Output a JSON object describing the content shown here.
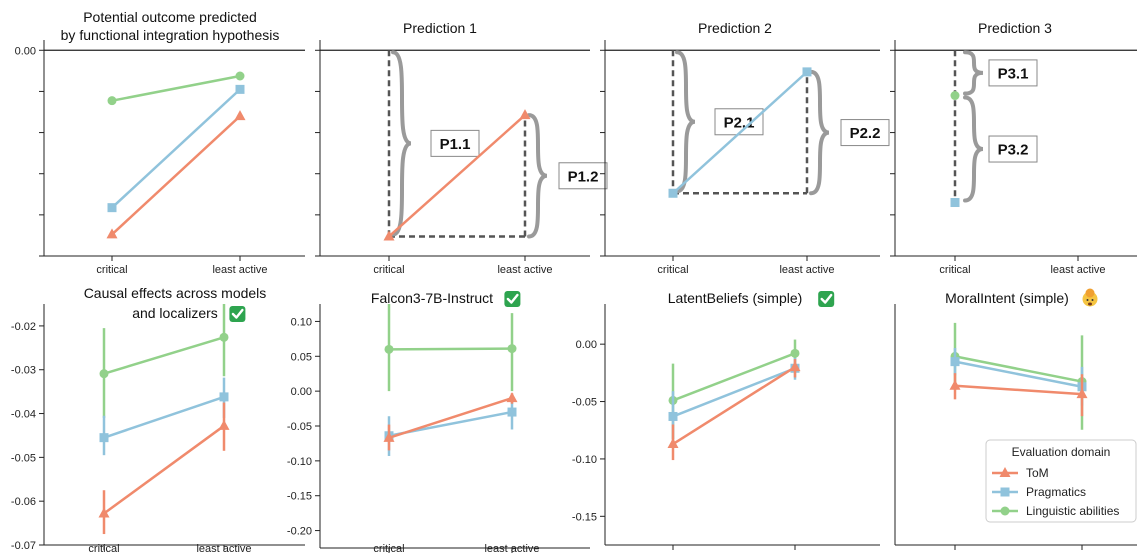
{
  "colors": {
    "tom": "#f08a6c",
    "pragmatics": "#90c3dc",
    "linguistic": "#92d18a",
    "axis": "#222222",
    "brace": "#9a9a9a",
    "dashed": "#555555",
    "emoji_check": "#2ea44f"
  },
  "legend": {
    "title": "Evaluation domain",
    "entries": [
      {
        "key": "tom",
        "label": "ToM",
        "marker": "triangle"
      },
      {
        "key": "pragmatics",
        "label": "Pragmatics",
        "marker": "square"
      },
      {
        "key": "linguistic",
        "label": "Linguistic abilities",
        "marker": "circle"
      }
    ]
  },
  "chart_data": [
    {
      "type": "line",
      "title": "Potential outcome predicted\nby functional integration hypothesis",
      "categories": [
        "critical",
        "least active"
      ],
      "ylim": [
        -0.2,
        0.01
      ],
      "yticks": [
        0,
        -0.04,
        -0.08,
        -0.12,
        -0.16,
        -0.2
      ],
      "ytick_labels": [
        "0.00",
        "",
        "",
        "",
        "",
        ""
      ],
      "hline": 0,
      "series": [
        {
          "key": "tom",
          "values": [
            -0.179,
            -0.064
          ]
        },
        {
          "key": "pragmatics",
          "values": [
            -0.153,
            -0.038
          ]
        },
        {
          "key": "linguistic",
          "values": [
            -0.049,
            -0.025
          ]
        }
      ]
    },
    {
      "type": "line",
      "title": "Prediction 1",
      "categories": [
        "critical",
        "least active"
      ],
      "ylim": [
        -0.2,
        0.01
      ],
      "yticks": [
        0,
        -0.04,
        -0.08,
        -0.12,
        -0.16,
        -0.2
      ],
      "ytick_labels": [
        "",
        "",
        "",
        "",
        "",
        ""
      ],
      "hline": 0,
      "series": [
        {
          "key": "tom",
          "values": [
            -0.181,
            -0.063
          ]
        }
      ],
      "annotations": [
        {
          "label": "P1.1",
          "kind": "dashed-vertical",
          "cat": 0,
          "from": 0,
          "to": -0.181
        },
        {
          "label": "P1.2",
          "kind": "dashed-corner",
          "from": -0.181,
          "to": -0.063
        }
      ]
    },
    {
      "type": "line",
      "title": "Prediction 2",
      "categories": [
        "critical",
        "least active"
      ],
      "ylim": [
        -0.2,
        0.01
      ],
      "yticks": [
        0,
        -0.04,
        -0.08,
        -0.12,
        -0.16,
        -0.2
      ],
      "ytick_labels": [
        "",
        "",
        "",
        "",
        "",
        ""
      ],
      "hline": 0,
      "series": [
        {
          "key": "pragmatics",
          "values": [
            -0.139,
            -0.021
          ]
        }
      ],
      "annotations": [
        {
          "label": "P2.1",
          "kind": "dashed-vertical",
          "cat": 0,
          "from": 0,
          "to": -0.139
        },
        {
          "label": "P2.2",
          "kind": "dashed-corner",
          "from": -0.139,
          "to": -0.021
        }
      ]
    },
    {
      "type": "scatter",
      "title": "Prediction 3",
      "categories": [
        "critical",
        "least active"
      ],
      "ylim": [
        -0.2,
        0.01
      ],
      "yticks": [
        0,
        -0.04,
        -0.08,
        -0.12,
        -0.16,
        -0.2
      ],
      "ytick_labels": [
        "",
        "",
        "",
        "",
        "",
        ""
      ],
      "hline": 0,
      "series": [
        {
          "key": "linguistic",
          "values": [
            -0.044,
            null
          ]
        },
        {
          "key": "pragmatics",
          "values": [
            -0.148,
            null
          ]
        }
      ],
      "annotations": [
        {
          "label": "P3.1",
          "from": 0,
          "to": -0.044
        },
        {
          "label": "P3.2",
          "from": -0.044,
          "to": -0.148
        }
      ]
    },
    {
      "type": "line",
      "title": "Causal effects across models\nand localizers",
      "title_badge": "check",
      "categories": [
        "critical",
        "least active"
      ],
      "ylim": [
        -0.07,
        -0.015
      ],
      "yticks": [
        -0.02,
        -0.03,
        -0.04,
        -0.05,
        -0.06,
        -0.07
      ],
      "ytick_labels": [
        "-0.02",
        "-0.03",
        "-0.04",
        "-0.05",
        "-0.06",
        "-0.07"
      ],
      "series": [
        {
          "key": "tom",
          "values": [
            -0.0628,
            -0.0428
          ],
          "err": [
            [
              -0.0675,
              -0.0575
            ],
            [
              -0.0485,
              -0.0375
            ]
          ]
        },
        {
          "key": "pragmatics",
          "values": [
            -0.0455,
            -0.0362
          ],
          "err": [
            [
              -0.0495,
              -0.0405
            ],
            [
              -0.041,
              -0.0318
            ]
          ]
        },
        {
          "key": "linguistic",
          "values": [
            -0.0309,
            -0.0226
          ],
          "err": [
            [
              -0.041,
              -0.0205
            ],
            [
              -0.0315,
              -0.015
            ]
          ]
        }
      ]
    },
    {
      "type": "line",
      "title": "Falcon3-7B-Instruct",
      "title_badge": "check",
      "categories": [
        "critical",
        "least active"
      ],
      "ylim": [
        -0.225,
        0.125
      ],
      "yticks": [
        0.1,
        0.05,
        0,
        -0.05,
        -0.1,
        -0.15,
        -0.2
      ],
      "ytick_labels": [
        "0.10",
        "0.05",
        "0.00",
        "-0.05",
        "-0.10",
        "-0.15",
        "-0.20"
      ],
      "series": [
        {
          "key": "tom",
          "values": [
            -0.067,
            -0.01
          ],
          "err": [
            [
              -0.085,
              -0.048
            ],
            [
              -0.018,
              -0.003
            ]
          ]
        },
        {
          "key": "pragmatics",
          "values": [
            -0.064,
            -0.03
          ],
          "err": [
            [
              -0.093,
              -0.036
            ],
            [
              -0.055,
              -0.012
            ]
          ]
        },
        {
          "key": "linguistic",
          "values": [
            0.06,
            0.061
          ],
          "err": [
            [
              0.0,
              0.125
            ],
            [
              0.0,
              0.112
            ]
          ]
        }
      ]
    },
    {
      "type": "line",
      "title": "LatentBeliefs (simple)",
      "title_badge": "check",
      "categories": [
        "critical",
        "least active"
      ],
      "ylim": [
        -0.175,
        0.035
      ],
      "yticks": [
        0,
        -0.05,
        -0.1,
        -0.15
      ],
      "ytick_labels": [
        "0.00",
        "-0.05",
        "-0.10",
        "-0.15"
      ],
      "series": [
        {
          "key": "tom",
          "values": [
            -0.087,
            -0.02
          ],
          "err": [
            [
              -0.101,
              -0.07
            ],
            [
              -0.029,
              -0.013
            ]
          ]
        },
        {
          "key": "pragmatics",
          "values": [
            -0.063,
            -0.021
          ],
          "err": [
            [
              -0.083,
              -0.041
            ],
            [
              -0.031,
              -0.012
            ]
          ]
        },
        {
          "key": "linguistic",
          "values": [
            -0.049,
            -0.008
          ],
          "err": [
            [
              -0.083,
              -0.017
            ],
            [
              -0.018,
              0.004
            ]
          ]
        }
      ]
    },
    {
      "type": "line",
      "title": "MoralIntent (simple)",
      "title_badge": "mind-blown",
      "categories": [
        "critical",
        "least active"
      ],
      "ylim": [
        -0.2,
        0.03
      ],
      "yticks": [],
      "ytick_labels": [],
      "series": [
        {
          "key": "tom",
          "values": [
            -0.048,
            -0.056
          ],
          "err": [
            [
              -0.061,
              -0.036
            ],
            [
              -0.077,
              -0.037
            ]
          ]
        },
        {
          "key": "pragmatics",
          "values": [
            -0.025,
            -0.049
          ],
          "err": [
            [
              -0.038,
              -0.012
            ],
            [
              -0.067,
              -0.03
            ]
          ]
        },
        {
          "key": "linguistic",
          "values": [
            -0.02,
            -0.044
          ],
          "err": [
            [
              -0.052,
              0.012
            ],
            [
              -0.09,
              0.0
            ]
          ]
        }
      ]
    }
  ]
}
